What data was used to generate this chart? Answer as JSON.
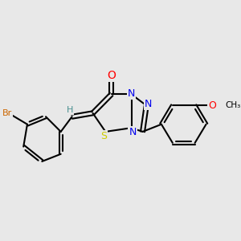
{
  "background_color": "#e8e8e8",
  "bond_color": "#000000",
  "atom_colors": {
    "N": "#0000ee",
    "O": "#ff0000",
    "S": "#cccc00",
    "Br": "#cc6600",
    "H": "#4a9090",
    "C": "#000000"
  },
  "bond_width": 1.5,
  "font_size_atom": 9,
  "fig_w": 3.0,
  "fig_h": 3.0,
  "dpi": 100,
  "xlim": [
    0,
    10
  ],
  "ylim": [
    0,
    10
  ]
}
